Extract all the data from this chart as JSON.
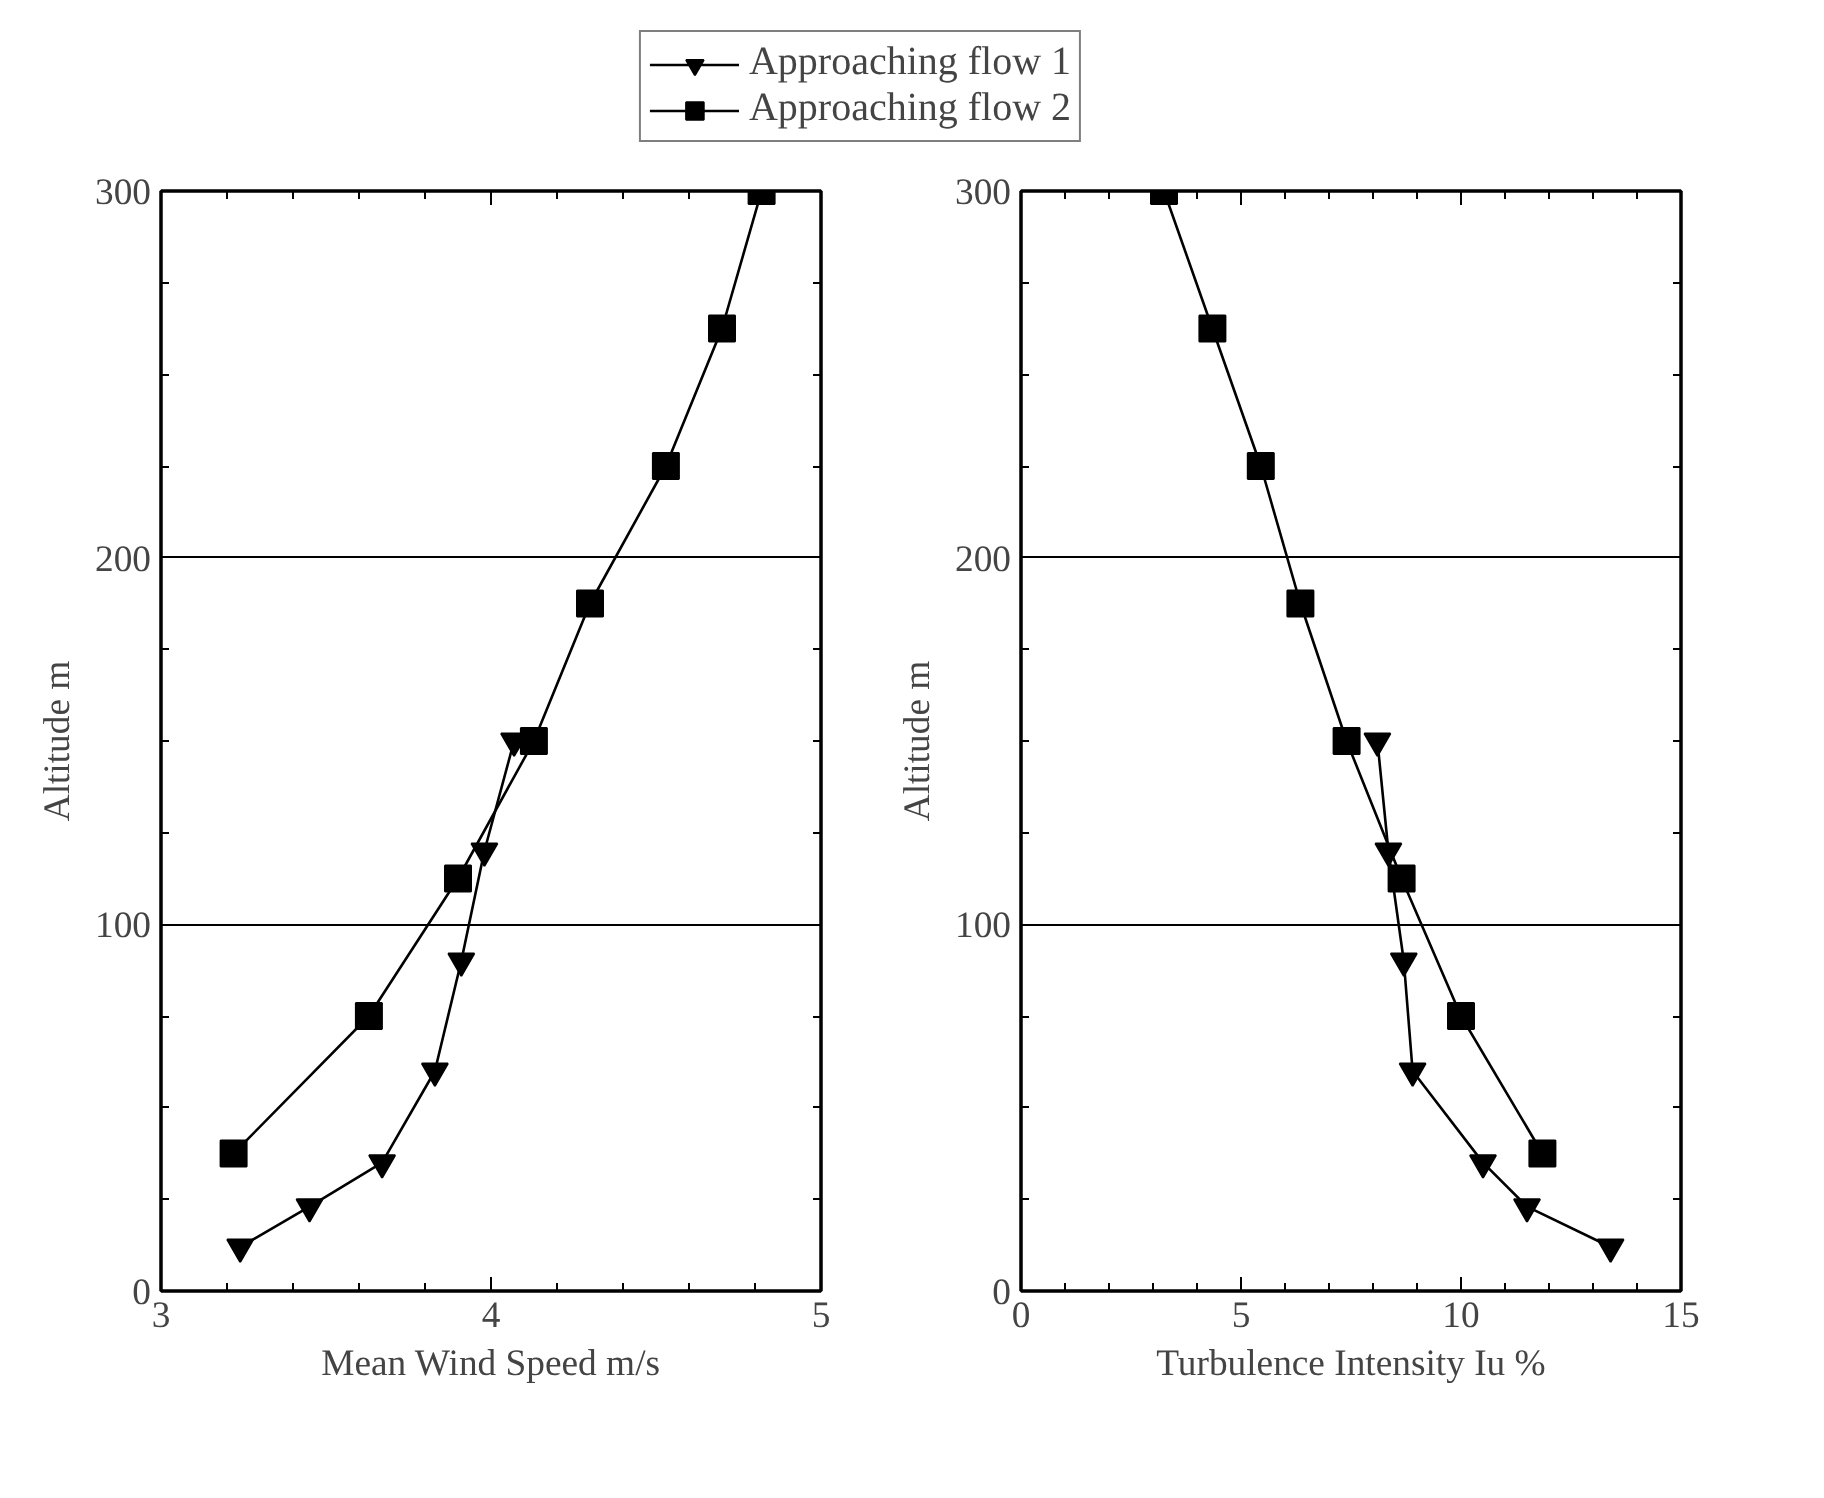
{
  "chart_data": [
    {
      "type": "line",
      "xlabel": "Mean Wind Speed m/s",
      "ylabel": "Altitude m",
      "xlim": [
        3,
        5
      ],
      "xticks": [
        3,
        4,
        5
      ],
      "ylim": [
        0,
        300
      ],
      "yticks": [
        0,
        100,
        200,
        300
      ],
      "grid": "y",
      "legend": "top",
      "series": [
        {
          "name": "Approaching flow 1",
          "color": "#000000",
          "marker": "triangle",
          "x": [
            3.24,
            3.45,
            3.67,
            3.83,
            3.91,
            3.98,
            4.07
          ],
          "values": [
            12,
            23,
            35,
            60,
            90,
            120,
            150
          ]
        },
        {
          "name": "Approaching flow 2",
          "color": "#000000",
          "marker": "square",
          "x": [
            3.22,
            3.63,
            3.9,
            4.13,
            4.3,
            4.53,
            4.7,
            4.82
          ],
          "values": [
            37.5,
            75,
            112.5,
            150,
            187.5,
            225,
            262.5,
            300
          ]
        }
      ]
    },
    {
      "type": "line",
      "xlabel": "Turbulence Intensity Iu %",
      "ylabel": "Altitude m",
      "xlim": [
        0,
        15
      ],
      "xticks": [
        0,
        5,
        10,
        15
      ],
      "ylim": [
        0,
        300
      ],
      "yticks": [
        0,
        100,
        200,
        300
      ],
      "grid": "y",
      "series": [
        {
          "color": "#000000",
          "marker": "triangle",
          "x": [
            13.4,
            11.5,
            10.5,
            8.9,
            8.7,
            8.35,
            8.1
          ],
          "values": [
            12,
            23,
            35,
            60,
            90,
            120,
            150
          ]
        },
        {
          "color": "#000000",
          "marker": "square",
          "x": [
            11.85,
            10.0,
            8.65,
            7.4,
            6.35,
            5.45,
            4.35,
            3.25
          ],
          "values": [
            37.5,
            75,
            112.5,
            150,
            187.5,
            225,
            262.5,
            300
          ]
        }
      ]
    }
  ]
}
